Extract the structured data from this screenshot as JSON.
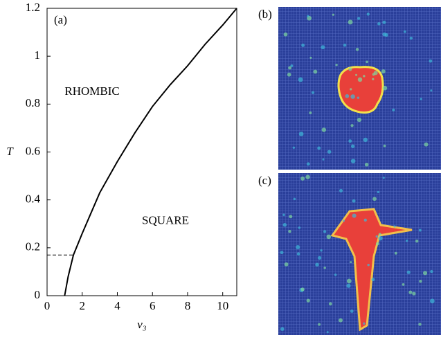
{
  "chart_data": {
    "type": "line",
    "panel_label": "(a)",
    "xlabel": "v₃",
    "ylabel": "T",
    "x": [
      1,
      1.2,
      1.5,
      2,
      3,
      4,
      5,
      6,
      7,
      8,
      9,
      10,
      10.8
    ],
    "series": [
      {
        "name": null,
        "color": "#000000",
        "values": [
          0,
          0.08,
          0.17,
          0.26,
          0.43,
          0.56,
          0.68,
          0.79,
          0.88,
          0.96,
          1.05,
          1.13,
          1.2
        ]
      }
    ],
    "xlim": [
      0,
      10.8
    ],
    "ylim": [
      0,
      1.2
    ],
    "xticks": [
      0,
      2,
      4,
      6,
      8,
      10
    ],
    "yticks": [
      0,
      0.2,
      0.4,
      0.6,
      0.8,
      1,
      1.2
    ],
    "dashed_line": {
      "x": [
        0,
        1.5
      ],
      "y": 0.17
    },
    "annotations": [
      {
        "text": "RHOMBIC",
        "x": 1,
        "y": 0.85
      },
      {
        "text": "SQUARE",
        "x": 5.4,
        "y": 0.31
      }
    ]
  },
  "panels": [
    {
      "label": "(b)"
    },
    {
      "label": "(c)"
    }
  ]
}
